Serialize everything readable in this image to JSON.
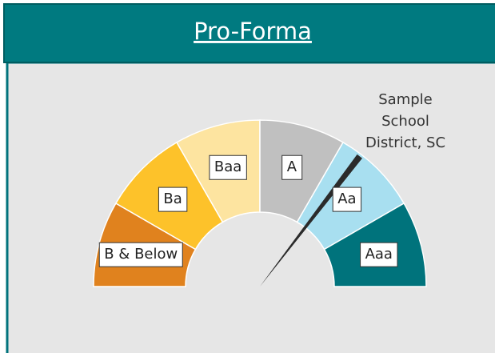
{
  "chart_data": {
    "type": "gauge",
    "title": "Pro-Forma",
    "lim": [
      0,
      6
    ],
    "segments": [
      {
        "name": "B & Below",
        "color": "#e0821e",
        "value": 1
      },
      {
        "name": "Ba",
        "color": "#fdc22a",
        "value": 1
      },
      {
        "name": "Baa",
        "color": "#fde4a0",
        "value": 1
      },
      {
        "name": "A",
        "color": "#c0c0c0",
        "value": 1
      },
      {
        "name": "Aa",
        "color": "#a8dff0",
        "value": 1
      },
      {
        "name": "Aaa",
        "color": "#00737c",
        "value": 1
      }
    ],
    "needle": {
      "value": 4.25,
      "color": "#2b2b2b",
      "label_lines": [
        "Sample",
        "School",
        "District, SC"
      ]
    }
  }
}
